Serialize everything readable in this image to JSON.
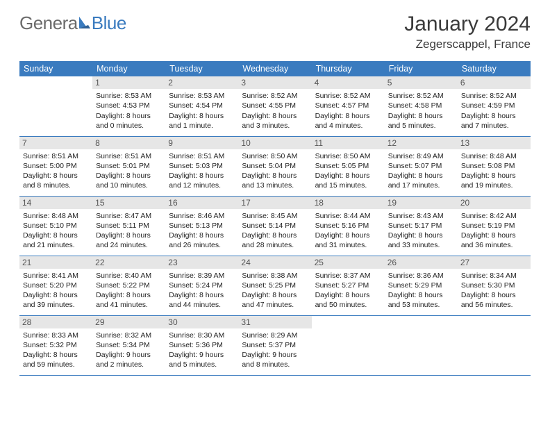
{
  "logo": {
    "part1": "Genera",
    "part2": "Blue"
  },
  "title": "January 2024",
  "location": "Zegerscappel, France",
  "colors": {
    "header_bg": "#3a7bbf",
    "header_text": "#ffffff",
    "daynum_bg": "#e6e6e6",
    "daynum_text": "#555555",
    "divider": "#3a7bbf",
    "body_text": "#222222",
    "title_text": "#3a3a3a",
    "logo_gray": "#6b6b6b",
    "logo_blue": "#3a7bbf",
    "page_bg": "#ffffff"
  },
  "typography": {
    "title_fontsize": 30,
    "location_fontsize": 17,
    "dayheader_fontsize": 12.5,
    "daynum_fontsize": 12,
    "cell_fontsize": 10.5,
    "logo_fontsize": 26
  },
  "day_headers": [
    "Sunday",
    "Monday",
    "Tuesday",
    "Wednesday",
    "Thursday",
    "Friday",
    "Saturday"
  ],
  "weeks": [
    [
      null,
      {
        "n": "1",
        "sunrise": "Sunrise: 8:53 AM",
        "sunset": "Sunset: 4:53 PM",
        "dl1": "Daylight: 8 hours",
        "dl2": "and 0 minutes."
      },
      {
        "n": "2",
        "sunrise": "Sunrise: 8:53 AM",
        "sunset": "Sunset: 4:54 PM",
        "dl1": "Daylight: 8 hours",
        "dl2": "and 1 minute."
      },
      {
        "n": "3",
        "sunrise": "Sunrise: 8:52 AM",
        "sunset": "Sunset: 4:55 PM",
        "dl1": "Daylight: 8 hours",
        "dl2": "and 3 minutes."
      },
      {
        "n": "4",
        "sunrise": "Sunrise: 8:52 AM",
        "sunset": "Sunset: 4:57 PM",
        "dl1": "Daylight: 8 hours",
        "dl2": "and 4 minutes."
      },
      {
        "n": "5",
        "sunrise": "Sunrise: 8:52 AM",
        "sunset": "Sunset: 4:58 PM",
        "dl1": "Daylight: 8 hours",
        "dl2": "and 5 minutes."
      },
      {
        "n": "6",
        "sunrise": "Sunrise: 8:52 AM",
        "sunset": "Sunset: 4:59 PM",
        "dl1": "Daylight: 8 hours",
        "dl2": "and 7 minutes."
      }
    ],
    [
      {
        "n": "7",
        "sunrise": "Sunrise: 8:51 AM",
        "sunset": "Sunset: 5:00 PM",
        "dl1": "Daylight: 8 hours",
        "dl2": "and 8 minutes."
      },
      {
        "n": "8",
        "sunrise": "Sunrise: 8:51 AM",
        "sunset": "Sunset: 5:01 PM",
        "dl1": "Daylight: 8 hours",
        "dl2": "and 10 minutes."
      },
      {
        "n": "9",
        "sunrise": "Sunrise: 8:51 AM",
        "sunset": "Sunset: 5:03 PM",
        "dl1": "Daylight: 8 hours",
        "dl2": "and 12 minutes."
      },
      {
        "n": "10",
        "sunrise": "Sunrise: 8:50 AM",
        "sunset": "Sunset: 5:04 PM",
        "dl1": "Daylight: 8 hours",
        "dl2": "and 13 minutes."
      },
      {
        "n": "11",
        "sunrise": "Sunrise: 8:50 AM",
        "sunset": "Sunset: 5:05 PM",
        "dl1": "Daylight: 8 hours",
        "dl2": "and 15 minutes."
      },
      {
        "n": "12",
        "sunrise": "Sunrise: 8:49 AM",
        "sunset": "Sunset: 5:07 PM",
        "dl1": "Daylight: 8 hours",
        "dl2": "and 17 minutes."
      },
      {
        "n": "13",
        "sunrise": "Sunrise: 8:48 AM",
        "sunset": "Sunset: 5:08 PM",
        "dl1": "Daylight: 8 hours",
        "dl2": "and 19 minutes."
      }
    ],
    [
      {
        "n": "14",
        "sunrise": "Sunrise: 8:48 AM",
        "sunset": "Sunset: 5:10 PM",
        "dl1": "Daylight: 8 hours",
        "dl2": "and 21 minutes."
      },
      {
        "n": "15",
        "sunrise": "Sunrise: 8:47 AM",
        "sunset": "Sunset: 5:11 PM",
        "dl1": "Daylight: 8 hours",
        "dl2": "and 24 minutes."
      },
      {
        "n": "16",
        "sunrise": "Sunrise: 8:46 AM",
        "sunset": "Sunset: 5:13 PM",
        "dl1": "Daylight: 8 hours",
        "dl2": "and 26 minutes."
      },
      {
        "n": "17",
        "sunrise": "Sunrise: 8:45 AM",
        "sunset": "Sunset: 5:14 PM",
        "dl1": "Daylight: 8 hours",
        "dl2": "and 28 minutes."
      },
      {
        "n": "18",
        "sunrise": "Sunrise: 8:44 AM",
        "sunset": "Sunset: 5:16 PM",
        "dl1": "Daylight: 8 hours",
        "dl2": "and 31 minutes."
      },
      {
        "n": "19",
        "sunrise": "Sunrise: 8:43 AM",
        "sunset": "Sunset: 5:17 PM",
        "dl1": "Daylight: 8 hours",
        "dl2": "and 33 minutes."
      },
      {
        "n": "20",
        "sunrise": "Sunrise: 8:42 AM",
        "sunset": "Sunset: 5:19 PM",
        "dl1": "Daylight: 8 hours",
        "dl2": "and 36 minutes."
      }
    ],
    [
      {
        "n": "21",
        "sunrise": "Sunrise: 8:41 AM",
        "sunset": "Sunset: 5:20 PM",
        "dl1": "Daylight: 8 hours",
        "dl2": "and 39 minutes."
      },
      {
        "n": "22",
        "sunrise": "Sunrise: 8:40 AM",
        "sunset": "Sunset: 5:22 PM",
        "dl1": "Daylight: 8 hours",
        "dl2": "and 41 minutes."
      },
      {
        "n": "23",
        "sunrise": "Sunrise: 8:39 AM",
        "sunset": "Sunset: 5:24 PM",
        "dl1": "Daylight: 8 hours",
        "dl2": "and 44 minutes."
      },
      {
        "n": "24",
        "sunrise": "Sunrise: 8:38 AM",
        "sunset": "Sunset: 5:25 PM",
        "dl1": "Daylight: 8 hours",
        "dl2": "and 47 minutes."
      },
      {
        "n": "25",
        "sunrise": "Sunrise: 8:37 AM",
        "sunset": "Sunset: 5:27 PM",
        "dl1": "Daylight: 8 hours",
        "dl2": "and 50 minutes."
      },
      {
        "n": "26",
        "sunrise": "Sunrise: 8:36 AM",
        "sunset": "Sunset: 5:29 PM",
        "dl1": "Daylight: 8 hours",
        "dl2": "and 53 minutes."
      },
      {
        "n": "27",
        "sunrise": "Sunrise: 8:34 AM",
        "sunset": "Sunset: 5:30 PM",
        "dl1": "Daylight: 8 hours",
        "dl2": "and 56 minutes."
      }
    ],
    [
      {
        "n": "28",
        "sunrise": "Sunrise: 8:33 AM",
        "sunset": "Sunset: 5:32 PM",
        "dl1": "Daylight: 8 hours",
        "dl2": "and 59 minutes."
      },
      {
        "n": "29",
        "sunrise": "Sunrise: 8:32 AM",
        "sunset": "Sunset: 5:34 PM",
        "dl1": "Daylight: 9 hours",
        "dl2": "and 2 minutes."
      },
      {
        "n": "30",
        "sunrise": "Sunrise: 8:30 AM",
        "sunset": "Sunset: 5:36 PM",
        "dl1": "Daylight: 9 hours",
        "dl2": "and 5 minutes."
      },
      {
        "n": "31",
        "sunrise": "Sunrise: 8:29 AM",
        "sunset": "Sunset: 5:37 PM",
        "dl1": "Daylight: 9 hours",
        "dl2": "and 8 minutes."
      },
      null,
      null,
      null
    ]
  ]
}
